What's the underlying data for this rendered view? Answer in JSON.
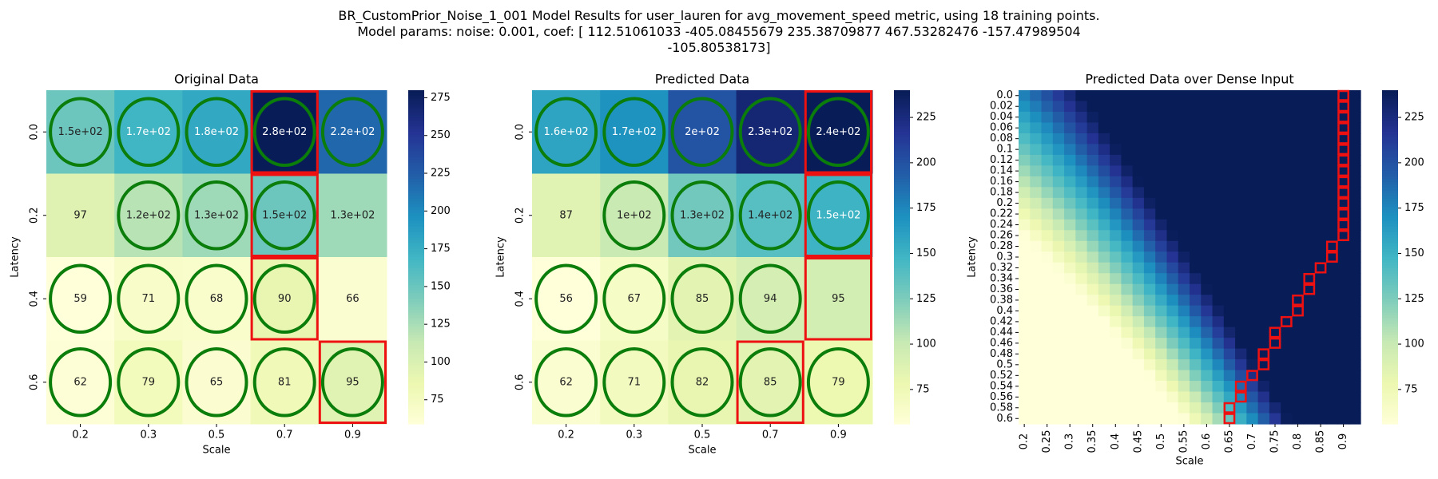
{
  "suptitle": [
    "BR_CustomPrior_Noise_1_001 Model Results for user_lauren for avg_movement_speed metric, using 18 training points.",
    "Model params: noise: 0.001, coef: [ 112.51061033 -405.08455679  235.38709877  467.53282476 -157.47989504",
    "-105.80538173]"
  ],
  "colors": {
    "ellipse": "#0a7d0a",
    "box": "#ee1111",
    "text_dark": "#222222",
    "text_light": "#ffffff",
    "colormap": "YlGnBu"
  },
  "chart_data": [
    {
      "type": "heatmap",
      "title": "Original Data",
      "xlabel": "Scale",
      "ylabel": "Latency",
      "x_ticks": [
        "0.2",
        "0.3",
        "0.5",
        "0.7",
        "0.9"
      ],
      "y_ticks": [
        "0.0",
        "0.2",
        "0.4",
        "0.6"
      ],
      "values": [
        [
          150,
          170,
          180,
          280,
          220
        ],
        [
          97,
          120,
          130,
          150,
          130
        ],
        [
          59,
          71,
          68,
          90,
          66
        ],
        [
          62,
          79,
          65,
          81,
          95
        ]
      ],
      "cell_labels": [
        [
          "1.5e+02",
          "1.7e+02",
          "1.8e+02",
          "2.8e+02",
          "2.2e+02"
        ],
        [
          "97",
          "1.2e+02",
          "1.3e+02",
          "1.5e+02",
          "1.3e+02"
        ],
        [
          "59",
          "71",
          "68",
          "90",
          "66"
        ],
        [
          "62",
          "79",
          "65",
          "81",
          "95"
        ]
      ],
      "circled": [
        [
          1,
          1,
          1,
          1,
          1
        ],
        [
          0,
          1,
          1,
          1,
          0
        ],
        [
          1,
          1,
          1,
          1,
          0
        ],
        [
          1,
          1,
          1,
          1,
          1
        ]
      ],
      "boxed": [
        [
          0,
          3
        ],
        [
          1,
          3
        ],
        [
          2,
          3
        ],
        [
          3,
          4
        ]
      ],
      "vmin": 59,
      "vmax": 280,
      "colorbar_ticks": [
        75,
        100,
        125,
        150,
        175,
        200,
        225,
        250,
        275
      ]
    },
    {
      "type": "heatmap",
      "title": "Predicted Data",
      "xlabel": "Scale",
      "ylabel": "Latency",
      "x_ticks": [
        "0.2",
        "0.3",
        "0.5",
        "0.7",
        "0.9"
      ],
      "y_ticks": [
        "0.0",
        "0.2",
        "0.4",
        "0.6"
      ],
      "values": [
        [
          160,
          170,
          200,
          230,
          240
        ],
        [
          87,
          100,
          130,
          140,
          150
        ],
        [
          56,
          67,
          85,
          94,
          95
        ],
        [
          62,
          71,
          82,
          85,
          79
        ]
      ],
      "cell_labels": [
        [
          "1.6e+02",
          "1.7e+02",
          "2e+02",
          "2.3e+02",
          "2.4e+02"
        ],
        [
          "87",
          "1e+02",
          "1.3e+02",
          "1.4e+02",
          "1.5e+02"
        ],
        [
          "56",
          "67",
          "85",
          "94",
          "95"
        ],
        [
          "62",
          "71",
          "82",
          "85",
          "79"
        ]
      ],
      "circled": [
        [
          1,
          1,
          1,
          1,
          1
        ],
        [
          0,
          1,
          1,
          1,
          1
        ],
        [
          1,
          1,
          1,
          1,
          0
        ],
        [
          1,
          1,
          1,
          1,
          1
        ]
      ],
      "boxed": [
        [
          0,
          4
        ],
        [
          1,
          4
        ],
        [
          2,
          4
        ],
        [
          3,
          3
        ]
      ],
      "vmin": 56,
      "vmax": 240,
      "colorbar_ticks": [
        75,
        100,
        125,
        150,
        175,
        200,
        225
      ]
    },
    {
      "type": "heatmap",
      "title": "Predicted Data over Dense Input",
      "xlabel": "Scale",
      "ylabel": "Latency",
      "x_ticks": [
        "0.2",
        "0.25",
        "0.3",
        "0.35",
        "0.4",
        "0.45",
        "0.5",
        "0.55",
        "0.6",
        "0.65",
        "0.7",
        "0.75",
        "0.8",
        "0.85",
        "0.9"
      ],
      "y_ticks": [
        "0.0",
        "0.02",
        "0.04",
        "0.06",
        "0.08",
        "0.1",
        "0.12",
        "0.14",
        "0.16",
        "0.18",
        "0.2",
        "0.22",
        "0.24",
        "0.26",
        "0.28",
        "0.3",
        "0.32",
        "0.34",
        "0.36",
        "0.38",
        "0.4",
        "0.42",
        "0.44",
        "0.46",
        "0.48",
        "0.5",
        "0.52",
        "0.54",
        "0.56",
        "0.58",
        "0.6"
      ],
      "x_range": [
        0.2,
        0.95
      ],
      "y_range": [
        0.0,
        0.6
      ],
      "coef": [
        112.51061033,
        -405.08455679,
        235.38709877,
        467.53282476,
        -157.47989504,
        -105.80538173
      ],
      "boxed_path": [
        [
          0.6,
          0.67
        ],
        [
          0.58,
          0.67
        ],
        [
          0.56,
          0.7
        ],
        [
          0.54,
          0.7
        ],
        [
          0.52,
          0.72
        ],
        [
          0.5,
          0.75
        ],
        [
          0.48,
          0.75
        ],
        [
          0.46,
          0.77
        ],
        [
          0.44,
          0.77
        ],
        [
          0.42,
          0.8
        ],
        [
          0.4,
          0.82
        ],
        [
          0.38,
          0.82
        ],
        [
          0.36,
          0.85
        ],
        [
          0.34,
          0.85
        ],
        [
          0.32,
          0.87
        ],
        [
          0.3,
          0.9
        ],
        [
          0.28,
          0.9
        ],
        [
          0.26,
          0.92
        ],
        [
          0.24,
          0.92
        ],
        [
          0.22,
          0.92
        ],
        [
          0.2,
          0.92
        ],
        [
          0.18,
          0.92
        ],
        [
          0.16,
          0.92
        ],
        [
          0.14,
          0.92
        ],
        [
          0.12,
          0.92
        ],
        [
          0.1,
          0.92
        ],
        [
          0.08,
          0.92
        ],
        [
          0.06,
          0.92
        ],
        [
          0.04,
          0.92
        ],
        [
          0.02,
          0.92
        ],
        [
          0.0,
          0.92
        ]
      ],
      "vmin": 56,
      "vmax": 240,
      "colorbar_ticks": [
        75,
        100,
        125,
        150,
        175,
        200,
        225
      ]
    }
  ]
}
